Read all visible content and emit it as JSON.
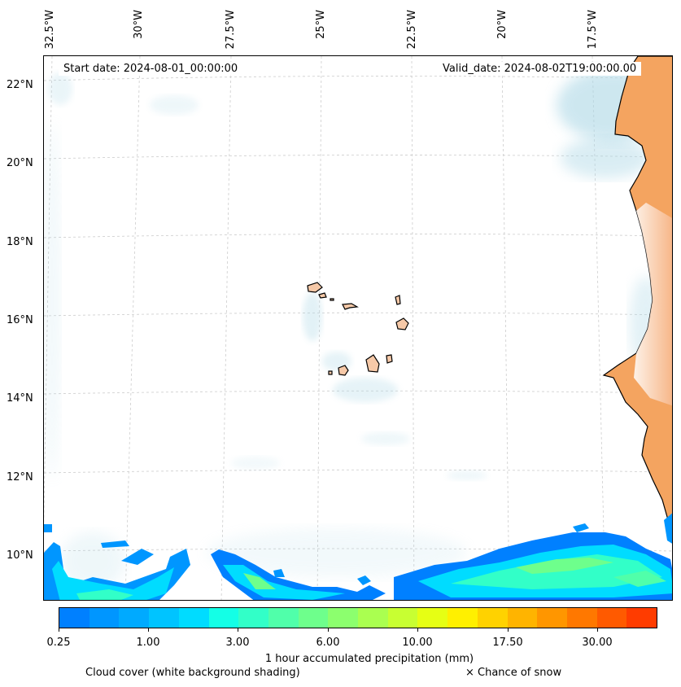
{
  "map": {
    "longitude_ticks": [
      "32.5°W",
      "30°W",
      "27.5°W",
      "25°W",
      "22.5°W",
      "20°W",
      "17.5°W"
    ],
    "latitude_ticks": [
      "22°N",
      "20°N",
      "18°N",
      "16°N",
      "14°N",
      "12°N",
      "10°N"
    ],
    "start_date_label": "Start date: 2024-08-01_00:00:00",
    "valid_date_label": "Valid_date: 2024-08-02T19:00:00.00",
    "land_color": "#f4a460",
    "island_fill": "#f6c9a8",
    "cloud_color": "#add8e6",
    "gridlines": true
  },
  "colorbar": {
    "colors": [
      "#0080ff",
      "#0096ff",
      "#00aaff",
      "#00c4ff",
      "#00dcff",
      "#14ffe6",
      "#32ffc8",
      "#50ffaa",
      "#6eff8c",
      "#8cff6e",
      "#aaff50",
      "#c8ff32",
      "#e6ff14",
      "#fff000",
      "#ffd200",
      "#ffb400",
      "#ff9600",
      "#ff7800",
      "#ff5a00",
      "#ff3c00"
    ],
    "tick_labels": [
      "0.25",
      "1.00",
      "3.00",
      "6.00",
      "10.00",
      "17.50",
      "30.00"
    ],
    "title": "1 hour accumulated precipitation (mm)"
  },
  "legend": {
    "cloud_cover": "Cloud cover (white background shading)",
    "snow": "× Chance of snow"
  }
}
